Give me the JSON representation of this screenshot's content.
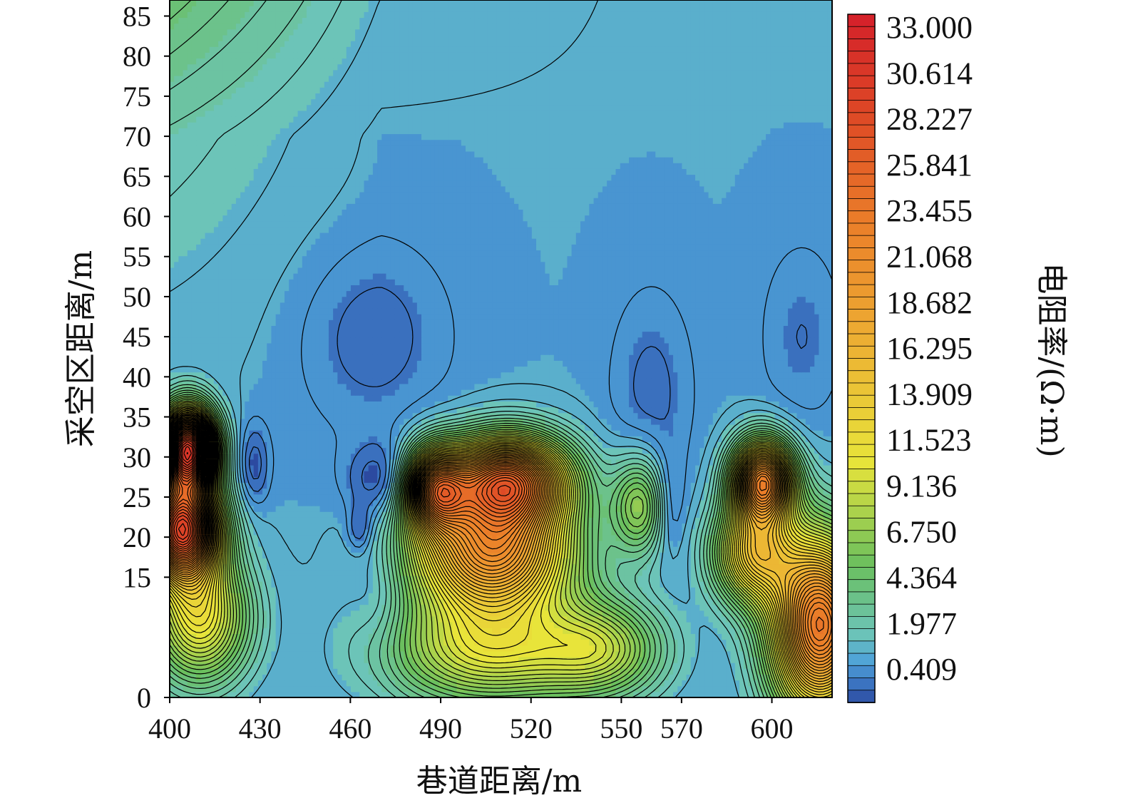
{
  "chart_data": {
    "type": "heatmap",
    "subtype": "filled-contour",
    "title": "",
    "xlabel": "巷道距离/m",
    "ylabel": "采空区距离/m",
    "colorbar_label": "电阻率/(Ω·m)",
    "x_ticks": [
      "400",
      "430",
      "460",
      "490",
      "520",
      "550",
      "570",
      "600"
    ],
    "x_tick_values": [
      400,
      430,
      460,
      490,
      520,
      550,
      570,
      600
    ],
    "y_ticks": [
      "0",
      "15",
      "20",
      "25",
      "30",
      "35",
      "40",
      "45",
      "50",
      "55",
      "60",
      "65",
      "70",
      "75",
      "80",
      "85"
    ],
    "y_tick_values": [
      0,
      15,
      20,
      25,
      30,
      35,
      40,
      45,
      50,
      55,
      60,
      65,
      70,
      75,
      80,
      85
    ],
    "xlim": [
      400,
      620
    ],
    "ylim": [
      0,
      87
    ],
    "colorbar_ticks": [
      "33.000",
      "30.614",
      "28.227",
      "25.841",
      "23.455",
      "21.068",
      "18.682",
      "16.295",
      "13.909",
      "11.523",
      "9.136",
      "6.750",
      "4.364",
      "1.977",
      "0.409"
    ],
    "colorbar_levels": [
      33.0,
      30.614,
      28.227,
      25.841,
      23.455,
      21.068,
      18.682,
      16.295,
      13.909,
      11.523,
      9.136,
      6.75,
      4.364,
      1.977,
      0.409
    ],
    "value_range": [
      -0.5,
      33.0
    ],
    "regions": [
      {
        "name": "high-left",
        "x": 403,
        "y": 21,
        "value": 28
      },
      {
        "name": "black-left",
        "x": 406,
        "y": 30,
        "value": 33
      },
      {
        "name": "yellow-left",
        "x": 409,
        "y": 12,
        "value": 11
      },
      {
        "name": "low-small-left",
        "x": 428,
        "y": 29,
        "value": -0.2
      },
      {
        "name": "low-deep-1",
        "x": 472,
        "y": 27,
        "value": -0.4
      },
      {
        "name": "low-small-2",
        "x": 463,
        "y": 21,
        "value": -0.2
      },
      {
        "name": "peak-center",
        "x": 515,
        "y": 27,
        "value": 31
      },
      {
        "name": "orange-center",
        "x": 507,
        "y": 19,
        "value": 22
      },
      {
        "name": "yellow-center",
        "x": 507,
        "y": 8,
        "value": 12
      },
      {
        "name": "low-right-1",
        "x": 566,
        "y": 24,
        "value": -0.1
      },
      {
        "name": "spot-right",
        "x": 597,
        "y": 27,
        "value": 24
      },
      {
        "name": "high-right",
        "x": 615,
        "y": 10,
        "value": 25
      }
    ],
    "colors": {
      "low": "#2c4aa0",
      "mid_blue": "#4fa3d8",
      "teal": "#6cc4b8",
      "green": "#6bbf5e",
      "yellow": "#e8e43a",
      "orange": "#ea7d29",
      "red": "#d4202a",
      "contour": "#000000"
    }
  }
}
